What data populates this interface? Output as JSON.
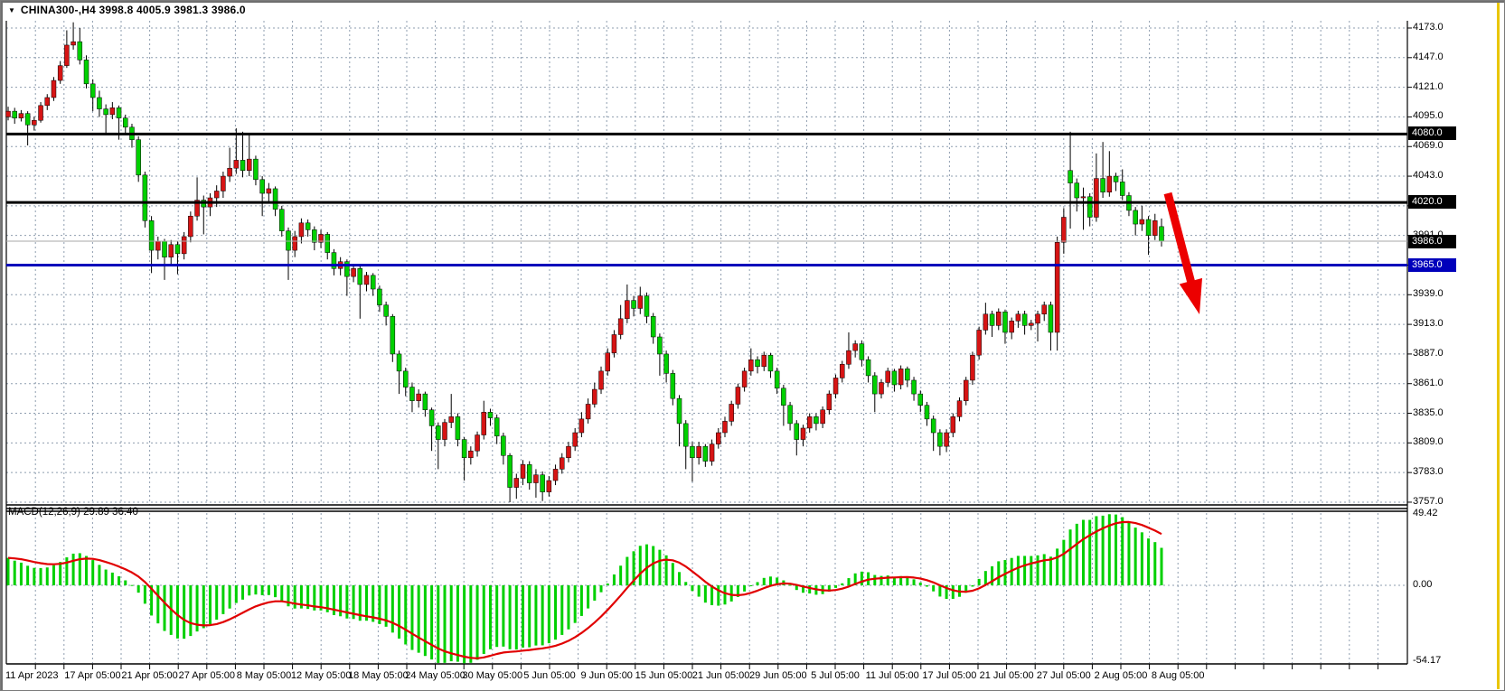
{
  "title": {
    "symbol_selector_icon": "▼",
    "text": "CHINA300-,H4  3998.8 4005.9 3981.3 3986.0"
  },
  "chart_data": {
    "type": "candlestick",
    "symbol": "CHINA300-",
    "timeframe": "H4",
    "title": "CHINA300-,H4  3998.8 4005.9 3981.3 3986.0",
    "current_bar": {
      "open": 3998.8,
      "high": 4005.9,
      "low": 3981.3,
      "close": 3986.0
    },
    "price_axis": {
      "labels": [
        "4173.0",
        "4147.0",
        "4121.0",
        "4095.0",
        "4069.0",
        "4043.0",
        "4017.0",
        "3991.0",
        "3965.0",
        "3939.0",
        "3913.0",
        "3887.0",
        "3861.0",
        "3835.0",
        "3809.0",
        "3783.0",
        "3757.0"
      ],
      "max": 4173.0,
      "min": 3757.0,
      "step": 26.0,
      "grid": "dashed"
    },
    "levels": [
      {
        "label": "4080.0",
        "value": 4080.0,
        "color": "#000000",
        "width": 3
      },
      {
        "label": "4020.0",
        "value": 4020.0,
        "color": "#000000",
        "width": 3
      },
      {
        "label": "3965.0",
        "value": 3965.0,
        "color": "#0000bb",
        "width": 3
      }
    ],
    "current_price": {
      "label": "3986.0",
      "value": 3986.0,
      "line_color": "#a9a9a9"
    },
    "candles": [
      [
        4095,
        4104,
        4092,
        4100
      ],
      [
        4100,
        4103,
        4089,
        4094
      ],
      [
        4094,
        4101,
        4091,
        4098
      ],
      [
        4098,
        4100,
        4070,
        4088
      ],
      [
        4088,
        4095,
        4083,
        4092
      ],
      [
        4092,
        4108,
        4090,
        4105
      ],
      [
        4105,
        4115,
        4101,
        4112
      ],
      [
        4112,
        4130,
        4109,
        4127
      ],
      [
        4127,
        4144,
        4124,
        4140
      ],
      [
        4140,
        4171,
        4138,
        4158
      ],
      [
        4158,
        4178,
        4154,
        4161
      ],
      [
        4161,
        4173,
        4141,
        4145
      ],
      [
        4145,
        4149,
        4120,
        4124
      ],
      [
        4124,
        4128,
        4100,
        4112
      ],
      [
        4112,
        4118,
        4095,
        4102
      ],
      [
        4102,
        4106,
        4080,
        4097
      ],
      [
        4097,
        4108,
        4093,
        4103
      ],
      [
        4103,
        4105,
        4075,
        4094
      ],
      [
        4094,
        4097,
        4081,
        4086
      ],
      [
        4086,
        4089,
        4068,
        4075
      ],
      [
        4075,
        4078,
        4038,
        4044
      ],
      [
        4044,
        4047,
        3998,
        4004
      ],
      [
        4004,
        4008,
        3958,
        3978
      ],
      [
        3978,
        3990,
        3970,
        3986
      ],
      [
        3986,
        3988,
        3952,
        3972
      ],
      [
        3972,
        3987,
        3964,
        3983
      ],
      [
        3983,
        3986,
        3957,
        3975
      ],
      [
        3975,
        3994,
        3970,
        3990
      ],
      [
        3990,
        4012,
        3985,
        4008
      ],
      [
        4008,
        4042,
        4004,
        4022
      ],
      [
        4022,
        4026,
        3992,
        4016
      ],
      [
        4016,
        4028,
        4008,
        4024
      ],
      [
        4024,
        4035,
        4016,
        4030
      ],
      [
        4030,
        4047,
        4024,
        4043
      ],
      [
        4043,
        4068,
        4038,
        4050
      ],
      [
        4050,
        4085,
        4045,
        4057
      ],
      [
        4057,
        4082,
        4042,
        4048
      ],
      [
        4048,
        4080,
        4043,
        4058
      ],
      [
        4058,
        4061,
        4035,
        4040
      ],
      [
        4040,
        4043,
        4008,
        4028
      ],
      [
        4028,
        4037,
        4020,
        4032
      ],
      [
        4032,
        4034,
        4008,
        4014
      ],
      [
        4014,
        4017,
        3990,
        3995
      ],
      [
        3995,
        3998,
        3952,
        3978
      ],
      [
        3978,
        3995,
        3972,
        3990
      ],
      [
        3990,
        4006,
        3984,
        4002
      ],
      [
        4002,
        4005,
        3990,
        3996
      ],
      [
        3996,
        3999,
        3978,
        3985
      ],
      [
        3985,
        3996,
        3980,
        3992
      ],
      [
        3992,
        3994,
        3970,
        3976
      ],
      [
        3976,
        3979,
        3956,
        3962
      ],
      [
        3962,
        3972,
        3956,
        3968
      ],
      [
        3968,
        3970,
        3938,
        3955
      ],
      [
        3955,
        3966,
        3950,
        3962
      ],
      [
        3962,
        3964,
        3918,
        3948
      ],
      [
        3948,
        3959,
        3942,
        3956
      ],
      [
        3956,
        3958,
        3938,
        3944
      ],
      [
        3944,
        3947,
        3924,
        3930
      ],
      [
        3930,
        3933,
        3912,
        3920
      ],
      [
        3920,
        3922,
        3880,
        3887
      ],
      [
        3887,
        3890,
        3852,
        3872
      ],
      [
        3872,
        3875,
        3850,
        3858
      ],
      [
        3858,
        3862,
        3836,
        3846
      ],
      [
        3846,
        3856,
        3840,
        3852
      ],
      [
        3852,
        3854,
        3832,
        3838
      ],
      [
        3838,
        3840,
        3802,
        3824
      ],
      [
        3824,
        3827,
        3786,
        3812
      ],
      [
        3812,
        3830,
        3806,
        3827
      ],
      [
        3827,
        3852,
        3822,
        3832
      ],
      [
        3832,
        3835,
        3806,
        3812
      ],
      [
        3812,
        3814,
        3776,
        3796
      ],
      [
        3796,
        3806,
        3790,
        3802
      ],
      [
        3802,
        3819,
        3797,
        3816
      ],
      [
        3816,
        3846,
        3812,
        3836
      ],
      [
        3836,
        3839,
        3824,
        3831
      ],
      [
        3831,
        3834,
        3808,
        3815
      ],
      [
        3815,
        3818,
        3790,
        3798
      ],
      [
        3798,
        3800,
        3757,
        3770
      ],
      [
        3770,
        3782,
        3760,
        3778
      ],
      [
        3778,
        3794,
        3772,
        3790
      ],
      [
        3790,
        3793,
        3768,
        3774
      ],
      [
        3774,
        3786,
        3761,
        3781
      ],
      [
        3781,
        3784,
        3758,
        3766
      ],
      [
        3766,
        3780,
        3762,
        3776
      ],
      [
        3776,
        3790,
        3772,
        3786
      ],
      [
        3786,
        3800,
        3782,
        3796
      ],
      [
        3796,
        3810,
        3792,
        3806
      ],
      [
        3806,
        3822,
        3802,
        3818
      ],
      [
        3818,
        3836,
        3814,
        3830
      ],
      [
        3830,
        3848,
        3826,
        3843
      ],
      [
        3843,
        3862,
        3840,
        3856
      ],
      [
        3856,
        3876,
        3852,
        3872
      ],
      [
        3872,
        3892,
        3868,
        3888
      ],
      [
        3888,
        3908,
        3884,
        3904
      ],
      [
        3904,
        3930,
        3900,
        3918
      ],
      [
        3918,
        3948,
        3914,
        3934
      ],
      [
        3934,
        3938,
        3920,
        3927
      ],
      [
        3927,
        3946,
        3922,
        3938
      ],
      [
        3938,
        3941,
        3914,
        3920
      ],
      [
        3920,
        3923,
        3896,
        3902
      ],
      [
        3902,
        3905,
        3868,
        3887
      ],
      [
        3887,
        3890,
        3862,
        3870
      ],
      [
        3870,
        3873,
        3842,
        3848
      ],
      [
        3848,
        3851,
        3806,
        3826
      ],
      [
        3826,
        3829,
        3786,
        3806
      ],
      [
        3806,
        3810,
        3775,
        3796
      ],
      [
        3796,
        3810,
        3790,
        3806
      ],
      [
        3806,
        3808,
        3788,
        3793
      ],
      [
        3793,
        3812,
        3789,
        3808
      ],
      [
        3808,
        3822,
        3804,
        3818
      ],
      [
        3818,
        3832,
        3814,
        3828
      ],
      [
        3828,
        3846,
        3824,
        3843
      ],
      [
        3843,
        3861,
        3839,
        3858
      ],
      [
        3858,
        3875,
        3854,
        3872
      ],
      [
        3872,
        3892,
        3868,
        3882
      ],
      [
        3882,
        3885,
        3870,
        3876
      ],
      [
        3876,
        3889,
        3872,
        3886
      ],
      [
        3886,
        3888,
        3866,
        3872
      ],
      [
        3872,
        3875,
        3852,
        3857
      ],
      [
        3857,
        3860,
        3824,
        3842
      ],
      [
        3842,
        3845,
        3820,
        3826
      ],
      [
        3826,
        3829,
        3798,
        3812
      ],
      [
        3812,
        3825,
        3806,
        3822
      ],
      [
        3822,
        3835,
        3818,
        3832
      ],
      [
        3832,
        3835,
        3820,
        3826
      ],
      [
        3826,
        3841,
        3822,
        3838
      ],
      [
        3838,
        3855,
        3834,
        3852
      ],
      [
        3852,
        3869,
        3848,
        3866
      ],
      [
        3866,
        3881,
        3862,
        3878
      ],
      [
        3878,
        3906,
        3874,
        3890
      ],
      [
        3890,
        3899,
        3884,
        3896
      ],
      [
        3896,
        3899,
        3876,
        3882
      ],
      [
        3882,
        3885,
        3862,
        3868
      ],
      [
        3868,
        3871,
        3836,
        3852
      ],
      [
        3852,
        3865,
        3848,
        3862
      ],
      [
        3862,
        3875,
        3858,
        3872
      ],
      [
        3872,
        3874,
        3854,
        3860
      ],
      [
        3860,
        3877,
        3856,
        3874
      ],
      [
        3874,
        3876,
        3858,
        3864
      ],
      [
        3864,
        3867,
        3846,
        3852
      ],
      [
        3852,
        3855,
        3836,
        3842
      ],
      [
        3842,
        3845,
        3824,
        3830
      ],
      [
        3830,
        3833,
        3802,
        3818
      ],
      [
        3818,
        3821,
        3798,
        3806
      ],
      [
        3806,
        3821,
        3801,
        3818
      ],
      [
        3818,
        3835,
        3814,
        3832
      ],
      [
        3832,
        3849,
        3828,
        3846
      ],
      [
        3846,
        3867,
        3842,
        3864
      ],
      [
        3864,
        3889,
        3860,
        3886
      ],
      [
        3886,
        3911,
        3882,
        3908
      ],
      [
        3908,
        3932,
        3904,
        3922
      ],
      [
        3922,
        3925,
        3902,
        3912
      ],
      [
        3912,
        3927,
        3908,
        3924
      ],
      [
        3924,
        3926,
        3896,
        3906
      ],
      [
        3906,
        3919,
        3900,
        3916
      ],
      [
        3916,
        3925,
        3910,
        3922
      ],
      [
        3922,
        3925,
        3904,
        3912
      ],
      [
        3912,
        3917,
        3908,
        3914
      ],
      [
        3914,
        3925,
        3898,
        3922
      ],
      [
        3922,
        3933,
        3916,
        3930
      ],
      [
        3930,
        3933,
        3890,
        3906
      ],
      [
        3906,
        3990,
        3890,
        3985
      ],
      [
        3985,
        4015,
        3975,
        4007
      ],
      [
        4048,
        4082,
        3997,
        4037
      ],
      [
        4037,
        4041,
        4012,
        4024
      ],
      [
        4024,
        4033,
        3996,
        4025
      ],
      [
        4025,
        4028,
        3999,
        4007
      ],
      [
        4007,
        4063,
        4003,
        4041
      ],
      [
        4041,
        4073,
        4024,
        4029
      ],
      [
        4029,
        4065,
        4025,
        4043
      ],
      [
        4043,
        4046,
        4030,
        4038
      ],
      [
        4038,
        4049,
        4022,
        4026
      ],
      [
        4026,
        4029,
        4008,
        4013
      ],
      [
        4013,
        4016,
        3991,
        4001
      ],
      [
        4001,
        4017,
        3995,
        4005
      ],
      [
        4005,
        4008,
        3974,
        3991
      ],
      [
        3991,
        4010,
        3987,
        4004
      ],
      [
        3998.8,
        4005.9,
        3981.3,
        3986.0
      ]
    ],
    "candle_colors": {
      "bull_body": "#d61414",
      "bear_body": "#00d000",
      "wick": "#000000",
      "note": "red = up, green = down"
    },
    "macd": {
      "label": "MACD(12,26,9) 29.89 36.40",
      "fast": 12,
      "slow": 26,
      "signal_period": 9,
      "main_value": 29.89,
      "signal_value": 36.4,
      "axis": {
        "labels": [
          "49.42",
          "0.00",
          "-54.17"
        ],
        "max": 49.42,
        "zero": 0.0,
        "min": -54.17
      },
      "histogram_color": "#00d000",
      "signal_color": "#e10000",
      "derived_from": "candles"
    },
    "dates": [
      "11 Apr 2023",
      "17 Apr 05:00",
      "21 Apr 05:00",
      "27 Apr 05:00",
      "8 May 05:00",
      "12 May 05:00",
      "18 May 05:00",
      "24 May 05:00",
      "30 May 05:00",
      "5 Jun 05:00",
      "9 Jun 05:00",
      "15 Jun 05:00",
      "21 Jun 05:00",
      "29 Jun 05:00",
      "5 Jul 05:00",
      "11 Jul 05:00",
      "17 Jul 05:00",
      "21 Jul 05:00",
      "27 Jul 05:00",
      "2 Aug 05:00",
      "8 Aug 05:00"
    ],
    "annotation_arrow": {
      "color": "#ec0000",
      "direction": "down-right",
      "meaning": "projected decline below 4020 resistance"
    },
    "grid_color": "#8e9daf",
    "window_edge_highlight_color": "#e9c600"
  }
}
